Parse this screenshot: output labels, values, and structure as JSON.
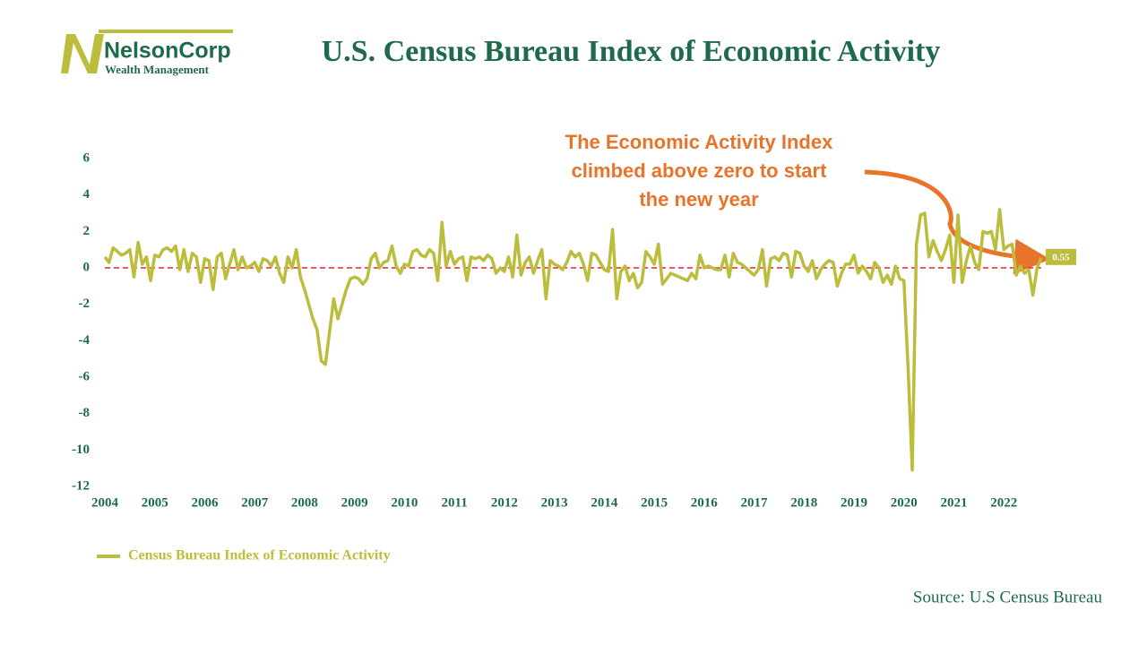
{
  "logo": {
    "name": "NelsonCorp",
    "tagline": "Wealth Management"
  },
  "chart_data": {
    "type": "line",
    "title": "U.S. Census Bureau Index of Economic Activity",
    "annotation": "The Economic Activity Index climbed above zero to start the new year",
    "source": "Source: U.S Census Bureau",
    "series": [
      {
        "name": "Census Bureau Index of Economic Activity",
        "color": "#bcbd3c",
        "values": [
          0.6,
          0.3,
          1.1,
          0.9,
          0.7,
          0.8,
          1.0,
          -0.5,
          1.4,
          0.2,
          0.6,
          -0.7,
          0.7,
          0.6,
          1.0,
          1.1,
          0.9,
          1.2,
          -0.1,
          1.0,
          -0.2,
          0.8,
          0.6,
          -0.8,
          0.5,
          0.4,
          -1.2,
          0.6,
          0.8,
          -0.6,
          0.2,
          1.0,
          -0.1,
          0.6,
          0.0,
          0.1,
          0.3,
          -0.2,
          0.5,
          0.4,
          0.1,
          0.6,
          -0.3,
          -0.8,
          0.6,
          0.0,
          1.0,
          -0.5,
          -1.2,
          -2.0,
          -2.8,
          -3.4,
          -5.1,
          -5.3,
          -3.5,
          -1.7,
          -2.8,
          -2.0,
          -1.2,
          -0.6,
          -0.5,
          -0.6,
          -0.9,
          -0.6,
          0.5,
          0.8,
          0.0,
          0.3,
          0.4,
          1.2,
          0.1,
          -0.3,
          0.2,
          0.1,
          0.9,
          1.0,
          0.7,
          0.6,
          1.0,
          0.8,
          -0.7,
          2.5,
          0.1,
          0.9,
          0.2,
          0.5,
          0.6,
          -0.7,
          0.6,
          0.5,
          0.6,
          0.4,
          0.7,
          0.5,
          -0.3,
          0.0,
          -0.2,
          0.6,
          -0.5,
          1.8,
          -0.4,
          0.3,
          0.6,
          -0.3,
          0.4,
          1.0,
          -1.7,
          0.4,
          0.2,
          0.1,
          -0.1,
          0.3,
          0.9,
          0.6,
          0.8,
          0.2,
          -0.7,
          0.8,
          0.7,
          0.3,
          -0.1,
          -0.2,
          2.1,
          -1.7,
          -0.2,
          0.1,
          -0.7,
          -0.3,
          -1.1,
          -0.8,
          0.9,
          0.6,
          0.2,
          1.3,
          -0.9,
          -0.6,
          -0.3,
          -0.4,
          -0.5,
          -0.6,
          -0.7,
          -0.3,
          -0.6,
          0.7,
          0.0,
          0.1,
          0.0,
          -0.1,
          -0.1,
          0.7,
          -0.5,
          0.8,
          0.3,
          0.2,
          0.0,
          -0.2,
          -0.4,
          -0.1,
          1.0,
          -1.0,
          0.5,
          0.6,
          0.4,
          0.8,
          0.7,
          -0.5,
          0.9,
          0.8,
          0.1,
          -0.2,
          0.4,
          -0.6,
          -0.1,
          0.2,
          0.4,
          0.3,
          -1.0,
          -0.3,
          0.2,
          0.2,
          0.7,
          -0.3,
          0.1,
          -0.2,
          -0.6,
          0.3,
          0.0,
          -0.8,
          -0.4,
          -0.9,
          0.1,
          -0.6,
          -0.7,
          -5.5,
          -11.1,
          1.3,
          2.9,
          3.0,
          0.6,
          1.5,
          0.9,
          0.4,
          1.0,
          1.8,
          -0.8,
          2.9,
          -0.8,
          0.4,
          1.2,
          0.3,
          -0.1,
          2.0,
          1.9,
          2.0,
          1.0,
          3.2,
          1.0,
          1.2,
          1.3,
          -0.4,
          0.1,
          -0.3,
          -0.1,
          -1.5,
          0.0,
          0.55
        ]
      }
    ],
    "xlim": [
      0,
      225
    ],
    "xticks": [
      {
        "value": 0,
        "label": "2004"
      },
      {
        "value": 12,
        "label": "2005"
      },
      {
        "value": 24,
        "label": "2006"
      },
      {
        "value": 36,
        "label": "2007"
      },
      {
        "value": 48,
        "label": "2008"
      },
      {
        "value": 60,
        "label": "2009"
      },
      {
        "value": 72,
        "label": "2010"
      },
      {
        "value": 84,
        "label": "2011"
      },
      {
        "value": 96,
        "label": "2012"
      },
      {
        "value": 108,
        "label": "2013"
      },
      {
        "value": 120,
        "label": "2014"
      },
      {
        "value": 132,
        "label": "2015"
      },
      {
        "value": 144,
        "label": "2016"
      },
      {
        "value": 156,
        "label": "2017"
      },
      {
        "value": 168,
        "label": "2018"
      },
      {
        "value": 180,
        "label": "2019"
      },
      {
        "value": 192,
        "label": "2020"
      },
      {
        "value": 204,
        "label": "2021"
      },
      {
        "value": 216,
        "label": "2022"
      }
    ],
    "ylim": [
      -12,
      6
    ],
    "yticks": [
      -12,
      -10,
      -8,
      -6,
      -4,
      -2,
      0,
      2,
      4,
      6
    ],
    "reference_line": 0,
    "legend": "bottom-left"
  }
}
